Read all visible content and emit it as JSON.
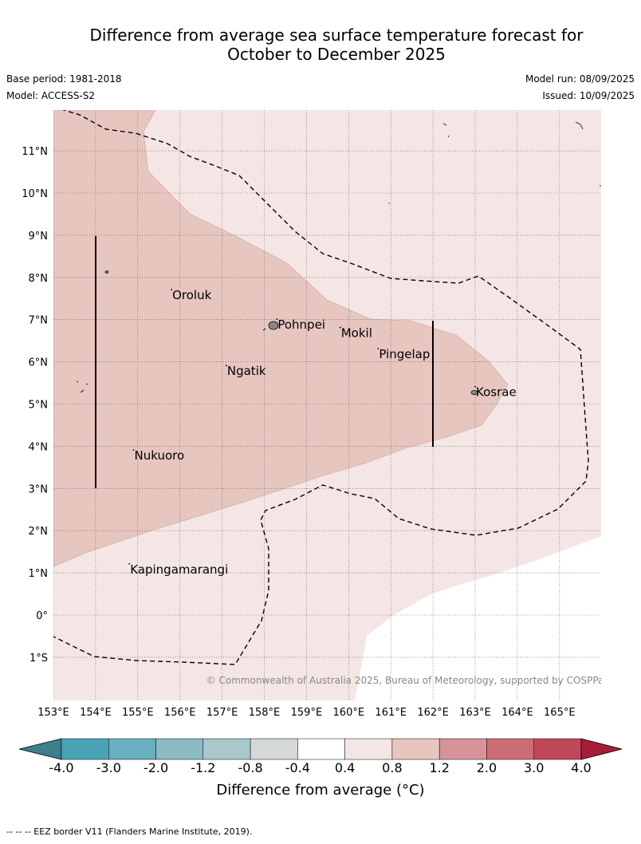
{
  "header": {
    "title_line1": "Difference from average sea surface temperature forecast for",
    "title_line2": "October to December 2025",
    "base_period": "Base period: 1981-2018",
    "model": "Model: ACCESS-S2",
    "model_run": "Model run: 08/09/2025",
    "issued": "Issued: 10/09/2025"
  },
  "map": {
    "lon_ticks": [
      "153°E",
      "154°E",
      "155°E",
      "156°E",
      "157°E",
      "158°E",
      "159°E",
      "160°E",
      "161°E",
      "162°E",
      "163°E",
      "164°E",
      "165°E"
    ],
    "lat_ticks": [
      "11°N",
      "10°N",
      "9°N",
      "8°N",
      "7°N",
      "6°N",
      "5°N",
      "4°N",
      "3°N",
      "2°N",
      "1°N",
      "0°",
      "1°S"
    ],
    "places": [
      {
        "name": "Oroluk",
        "lon": 155.8,
        "lat": 7.6
      },
      {
        "name": "Pohnpei",
        "lon": 158.3,
        "lat": 6.9
      },
      {
        "name": "Mokil",
        "lon": 159.8,
        "lat": 6.7
      },
      {
        "name": "Pingelap",
        "lon": 160.7,
        "lat": 6.2
      },
      {
        "name": "Ngatik",
        "lon": 157.1,
        "lat": 5.8
      },
      {
        "name": "Kosrae",
        "lon": 163.0,
        "lat": 5.3
      },
      {
        "name": "Nukuoro",
        "lon": 154.9,
        "lat": 3.8
      },
      {
        "name": "Kapingamarangi",
        "lon": 154.8,
        "lat": 1.1
      }
    ],
    "copyright": "© Commonwealth of Australia 2025, Bureau of Meteorology, supported by COSPPac",
    "colors": {
      "band_0_4_to_0_8": "#f4e6e4",
      "band_0_8_to_1_2": "#e7c6c0"
    }
  },
  "colorbar": {
    "ticks": [
      "-4.0",
      "-3.0",
      "-2.0",
      "-1.2",
      "-0.8",
      "-0.4",
      "0.4",
      "0.8",
      "1.2",
      "2.0",
      "3.0",
      "4.0"
    ],
    "colors": [
      "#47a3b5",
      "#68b0bf",
      "#8cbbc4",
      "#aac8cc",
      "#d4d8d9",
      "#ffffff",
      "#f4e6e4",
      "#e7c6c0",
      "#d8939a",
      "#cc6d76",
      "#c0475a"
    ],
    "low_extend": "#3c7f8d",
    "high_extend": "#a91d3b",
    "title": "Difference from average (°C)"
  },
  "footer": "-- -- -- EEZ border V11 (Flanders Marine Institute, 2019)."
}
